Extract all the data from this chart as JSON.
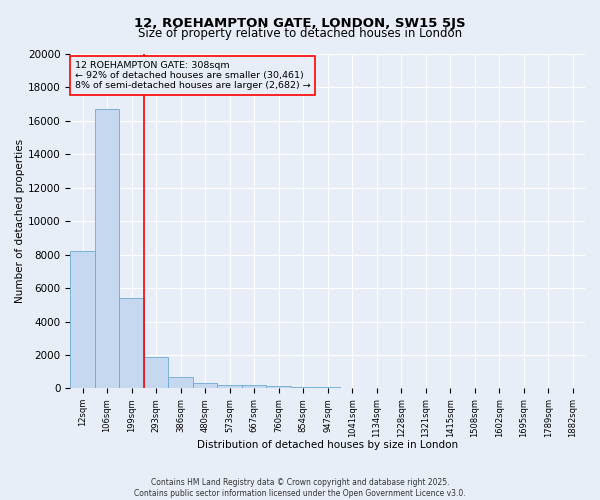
{
  "title1": "12, ROEHAMPTON GATE, LONDON, SW15 5JS",
  "title2": "Size of property relative to detached houses in London",
  "xlabel": "Distribution of detached houses by size in London",
  "ylabel": "Number of detached properties",
  "bar_labels": [
    "12sqm",
    "106sqm",
    "199sqm",
    "293sqm",
    "386sqm",
    "480sqm",
    "573sqm",
    "667sqm",
    "760sqm",
    "854sqm",
    "947sqm",
    "1041sqm",
    "1134sqm",
    "1228sqm",
    "1321sqm",
    "1415sqm",
    "1508sqm",
    "1602sqm",
    "1695sqm",
    "1789sqm",
    "1882sqm"
  ],
  "bar_values": [
    8200,
    16700,
    5400,
    1850,
    700,
    330,
    220,
    180,
    120,
    90,
    60,
    40,
    30,
    20,
    15,
    10,
    8,
    6,
    5,
    4,
    3
  ],
  "bar_color": "#c5d8f0",
  "bar_edge_color": "#6aaad4",
  "ylim": [
    0,
    20000
  ],
  "yticks": [
    0,
    2000,
    4000,
    6000,
    8000,
    10000,
    12000,
    14000,
    16000,
    18000,
    20000
  ],
  "red_line_x": 3,
  "annotation_title": "12 ROEHAMPTON GATE: 308sqm",
  "annotation_line1": "← 92% of detached houses are smaller (30,461)",
  "annotation_line2": "8% of semi-detached houses are larger (2,682) →",
  "footer1": "Contains HM Land Registry data © Crown copyright and database right 2025.",
  "footer2": "Contains public sector information licensed under the Open Government Licence v3.0.",
  "bg_color": "#e8eef8"
}
